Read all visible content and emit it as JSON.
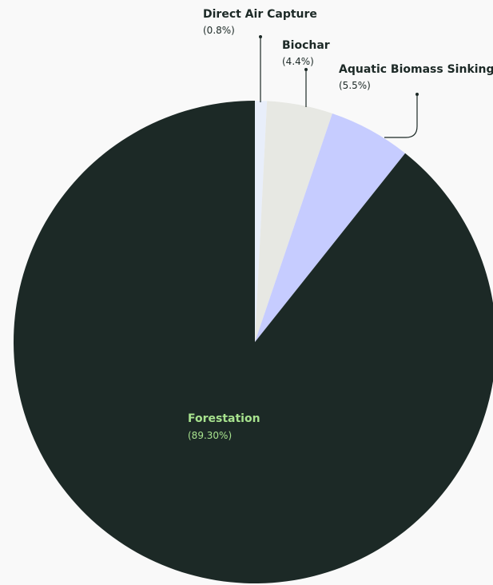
{
  "chart_data": {
    "type": "pie",
    "title": "",
    "slices": [
      {
        "label": "Direct Air Capture",
        "pct_label": "(0.8%)",
        "value": 0.8,
        "color": "#e8eefa"
      },
      {
        "label": "Biochar",
        "pct_label": "(4.4%)",
        "value": 4.4,
        "color": "#e7e8e3"
      },
      {
        "label": "Aquatic Biomass Sinking",
        "pct_label": "(5.5%)",
        "value": 5.5,
        "color": "#c6ccff"
      },
      {
        "label": "Forestation",
        "pct_label": "(89.30%)",
        "value": 89.3,
        "color": "#1c2926"
      }
    ],
    "legend": "none",
    "grid": false,
    "label_colors": {
      "outside": "#1c2926",
      "inside": "#a7e28e"
    }
  }
}
